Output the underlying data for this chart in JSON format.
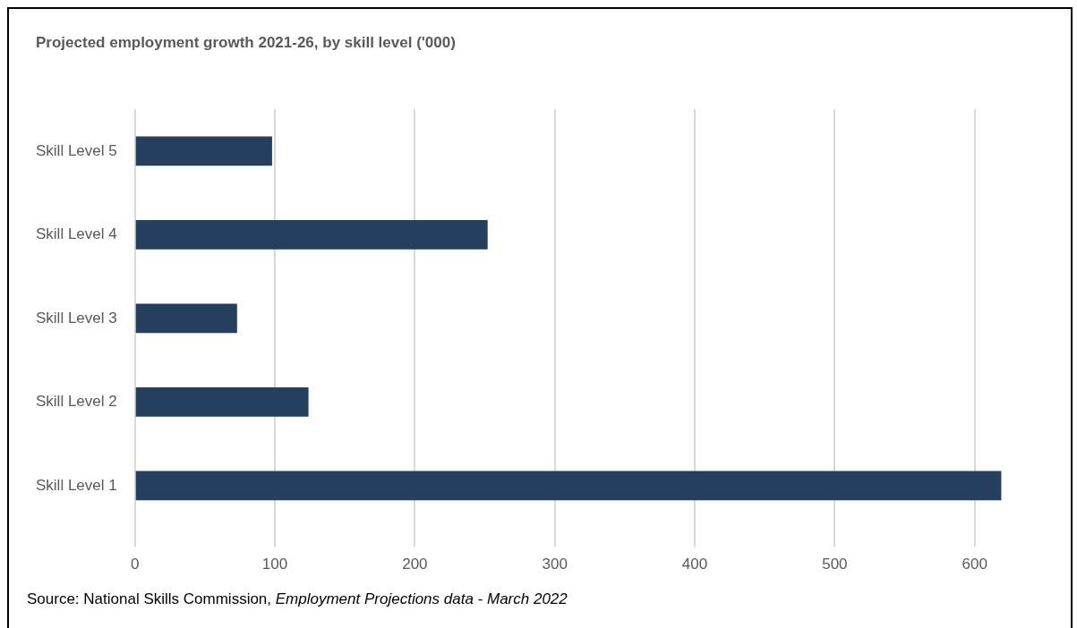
{
  "chart_data": {
    "type": "bar",
    "orientation": "horizontal",
    "title": "Projected employment growth 2021-26, by skill level ('000)",
    "categories": [
      "Skill Level 5",
      "Skill Level 4",
      "Skill Level 3",
      "Skill Level 2",
      "Skill Level 1"
    ],
    "values": [
      98,
      252,
      73,
      124,
      619
    ],
    "color": "#253f5e",
    "xlim": [
      0,
      620
    ],
    "xticks": [
      0,
      100,
      200,
      300,
      400,
      500,
      600
    ],
    "grid": "x",
    "annotations": [
      "Source:  National Skills Commission, Employment Projections data - March 2022"
    ]
  }
}
